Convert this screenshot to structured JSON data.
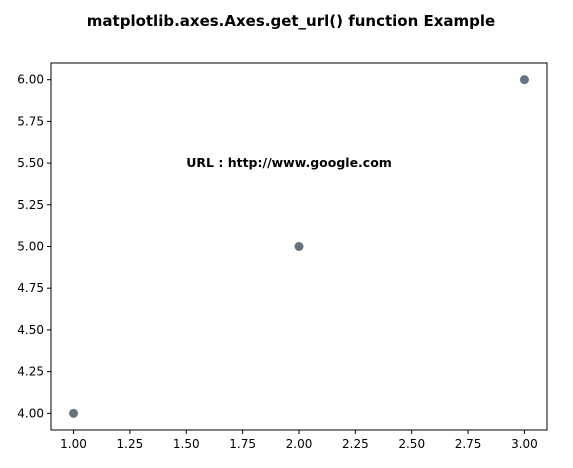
{
  "chart_data": {
    "type": "scatter",
    "title": "matplotlib.axes.Axes.get_url() function Example",
    "xlabel": "",
    "ylabel": "",
    "x": [
      1,
      2,
      3
    ],
    "y": [
      4,
      5,
      6
    ],
    "marker_color": "#66737f",
    "xlim": [
      0.9,
      3.1
    ],
    "ylim": [
      3.9,
      6.1
    ],
    "xticks": [
      1.0,
      1.25,
      1.5,
      1.75,
      2.0,
      2.25,
      2.5,
      2.75,
      3.0
    ],
    "xtick_labels": [
      "1.00",
      "1.25",
      "1.50",
      "1.75",
      "2.00",
      "2.25",
      "2.50",
      "2.75",
      "3.00"
    ],
    "yticks": [
      4.0,
      4.25,
      4.5,
      4.75,
      5.0,
      5.25,
      5.5,
      5.75,
      6.0
    ],
    "ytick_labels": [
      "4.00",
      "4.25",
      "4.50",
      "4.75",
      "5.00",
      "5.25",
      "5.50",
      "5.75",
      "6.00"
    ],
    "grid": false,
    "annotations": [
      {
        "text": "URL : http://www.google.com",
        "x": 1.5,
        "y": 5.5
      }
    ]
  }
}
